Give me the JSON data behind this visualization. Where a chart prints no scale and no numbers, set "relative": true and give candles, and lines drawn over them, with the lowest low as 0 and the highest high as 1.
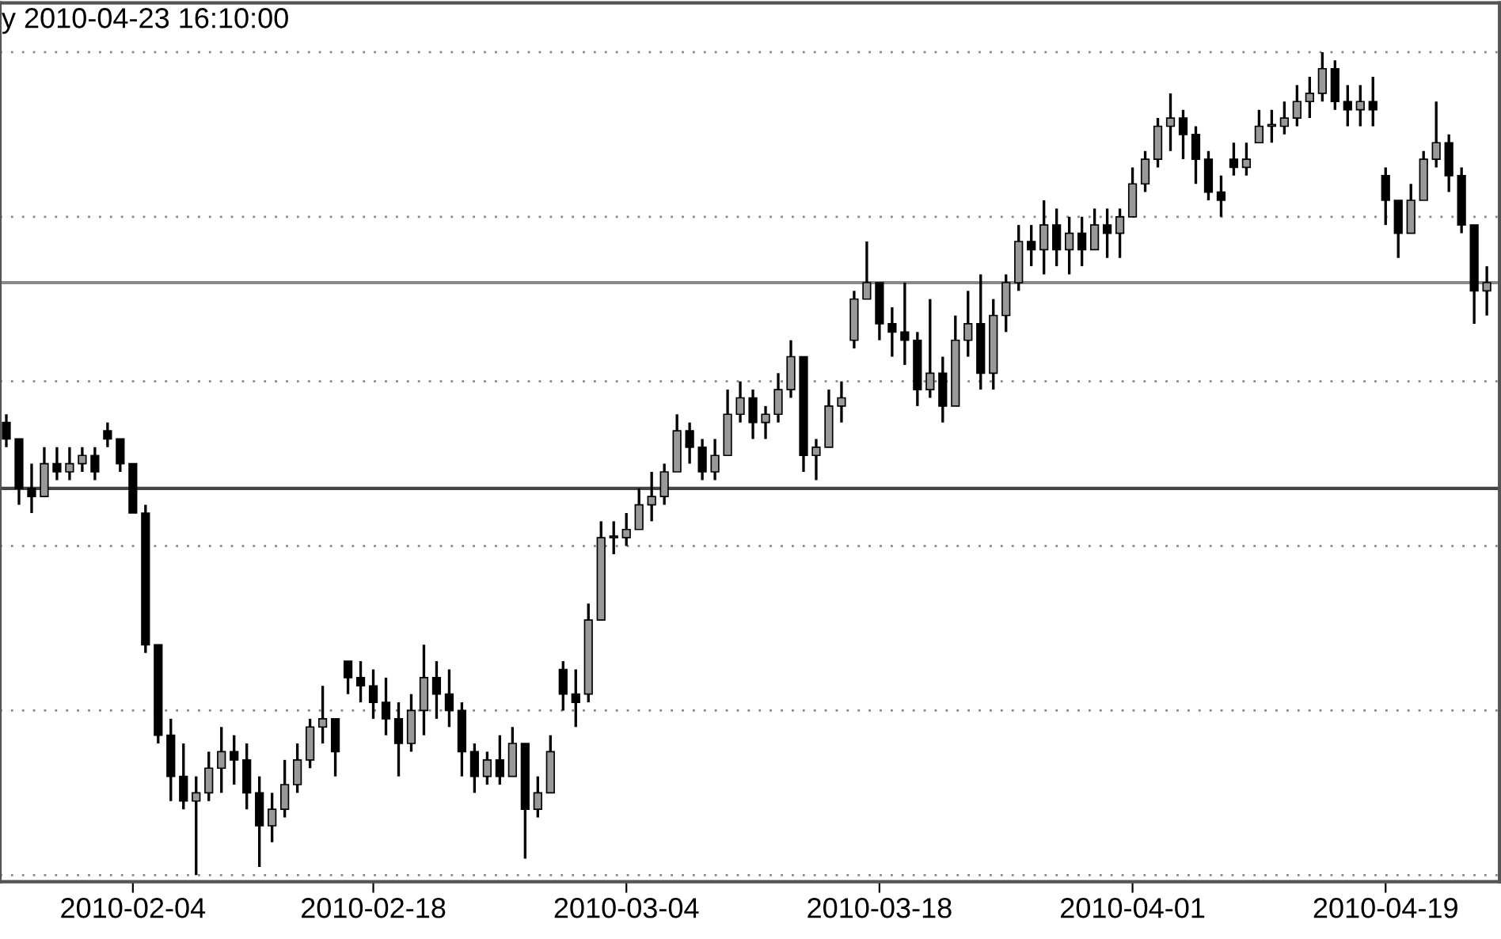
{
  "chart_data": {
    "type": "candlestick",
    "title": "y 2010-04-23 16:10:00",
    "relative": true,
    "grid": "y",
    "legend": false,
    "categories": [
      null,
      null,
      null,
      null,
      null,
      null,
      null,
      null,
      null,
      null,
      "2010-02-04",
      null,
      null,
      null,
      null,
      null,
      null,
      null,
      null,
      null,
      null,
      null,
      null,
      null,
      null,
      null,
      null,
      null,
      null,
      "2010-02-18",
      null,
      null,
      null,
      null,
      null,
      null,
      null,
      null,
      null,
      null,
      null,
      null,
      null,
      null,
      null,
      null,
      null,
      null,
      null,
      "2010-03-04",
      null,
      null,
      null,
      null,
      null,
      null,
      null,
      null,
      null,
      null,
      null,
      null,
      null,
      null,
      null,
      null,
      null,
      null,
      null,
      "2010-03-18",
      null,
      null,
      null,
      null,
      null,
      null,
      null,
      null,
      null,
      null,
      null,
      null,
      null,
      null,
      null,
      null,
      null,
      null,
      null,
      "2010-04-01",
      null,
      null,
      null,
      null,
      null,
      null,
      null,
      null,
      null,
      null,
      null,
      null,
      null,
      null,
      null,
      null,
      null,
      null,
      null,
      "2010-04-19",
      null,
      null,
      null,
      null,
      null,
      null,
      null,
      null
    ],
    "ohlc": [
      [
        0.55,
        0.56,
        0.52,
        0.53
      ],
      [
        0.53,
        0.53,
        0.45,
        0.47
      ],
      [
        0.47,
        0.5,
        0.44,
        0.46
      ],
      [
        0.46,
        0.52,
        0.46,
        0.5
      ],
      [
        0.5,
        0.52,
        0.48,
        0.49
      ],
      [
        0.49,
        0.52,
        0.48,
        0.5
      ],
      [
        0.5,
        0.52,
        0.49,
        0.51
      ],
      [
        0.51,
        0.52,
        0.48,
        0.49
      ],
      [
        0.54,
        0.55,
        0.52,
        0.53
      ],
      [
        0.53,
        0.53,
        0.49,
        0.5
      ],
      [
        0.5,
        0.5,
        0.44,
        0.44
      ],
      [
        0.44,
        0.45,
        0.27,
        0.28
      ],
      [
        0.28,
        0.28,
        0.16,
        0.17
      ],
      [
        0.17,
        0.19,
        0.09,
        0.12
      ],
      [
        0.12,
        0.16,
        0.08,
        0.09
      ],
      [
        0.09,
        0.12,
        0,
        0.1
      ],
      [
        0.1,
        0.15,
        0.09,
        0.13
      ],
      [
        0.13,
        0.18,
        0.1,
        0.15
      ],
      [
        0.15,
        0.17,
        0.11,
        0.14
      ],
      [
        0.14,
        0.16,
        0.08,
        0.1
      ],
      [
        0.1,
        0.12,
        0.01,
        0.06
      ],
      [
        0.06,
        0.1,
        0.04,
        0.08
      ],
      [
        0.08,
        0.14,
        0.07,
        0.11
      ],
      [
        0.11,
        0.16,
        0.1,
        0.14
      ],
      [
        0.14,
        0.19,
        0.13,
        0.18
      ],
      [
        0.18,
        0.23,
        0.16,
        0.19
      ],
      [
        0.19,
        0.19,
        0.12,
        0.15
      ],
      [
        0.26,
        0.26,
        0.22,
        0.24
      ],
      [
        0.24,
        0.26,
        0.21,
        0.23
      ],
      [
        0.23,
        0.25,
        0.19,
        0.21
      ],
      [
        0.21,
        0.24,
        0.17,
        0.19
      ],
      [
        0.19,
        0.21,
        0.12,
        0.16
      ],
      [
        0.16,
        0.22,
        0.15,
        0.2
      ],
      [
        0.2,
        0.28,
        0.17,
        0.24
      ],
      [
        0.24,
        0.26,
        0.19,
        0.22
      ],
      [
        0.22,
        0.25,
        0.18,
        0.2
      ],
      [
        0.2,
        0.21,
        0.12,
        0.15
      ],
      [
        0.15,
        0.16,
        0.1,
        0.12
      ],
      [
        0.12,
        0.15,
        0.11,
        0.14
      ],
      [
        0.14,
        0.17,
        0.11,
        0.12
      ],
      [
        0.12,
        0.18,
        0.12,
        0.16
      ],
      [
        0.16,
        0.16,
        0.02,
        0.08
      ],
      [
        0.08,
        0.12,
        0.07,
        0.1
      ],
      [
        0.1,
        0.17,
        0.1,
        0.15
      ],
      [
        0.25,
        0.26,
        0.2,
        0.22
      ],
      [
        0.22,
        0.25,
        0.18,
        0.21
      ],
      [
        0.22,
        0.33,
        0.21,
        0.31
      ],
      [
        0.31,
        0.43,
        0.31,
        0.41
      ],
      [
        0.41,
        0.43,
        0.39,
        0.41
      ],
      [
        0.41,
        0.44,
        0.4,
        0.42
      ],
      [
        0.42,
        0.47,
        0.42,
        0.45
      ],
      [
        0.45,
        0.49,
        0.43,
        0.46
      ],
      [
        0.46,
        0.5,
        0.45,
        0.49
      ],
      [
        0.49,
        0.56,
        0.49,
        0.54
      ],
      [
        0.54,
        0.55,
        0.5,
        0.52
      ],
      [
        0.52,
        0.53,
        0.48,
        0.49
      ],
      [
        0.49,
        0.53,
        0.48,
        0.51
      ],
      [
        0.51,
        0.59,
        0.51,
        0.56
      ],
      [
        0.56,
        0.6,
        0.55,
        0.58
      ],
      [
        0.58,
        0.59,
        0.53,
        0.55
      ],
      [
        0.55,
        0.57,
        0.53,
        0.56
      ],
      [
        0.56,
        0.61,
        0.55,
        0.59
      ],
      [
        0.59,
        0.65,
        0.58,
        0.63
      ],
      [
        0.63,
        0.63,
        0.49,
        0.51
      ],
      [
        0.51,
        0.53,
        0.48,
        0.52
      ],
      [
        0.52,
        0.59,
        0.52,
        0.57
      ],
      [
        0.57,
        0.6,
        0.55,
        0.58
      ],
      [
        0.65,
        0.71,
        0.64,
        0.7
      ],
      [
        0.7,
        0.77,
        0.7,
        0.72
      ],
      [
        0.72,
        0.72,
        0.65,
        0.67
      ],
      [
        0.67,
        0.69,
        0.63,
        0.66
      ],
      [
        0.66,
        0.72,
        0.62,
        0.65
      ],
      [
        0.65,
        0.66,
        0.57,
        0.59
      ],
      [
        0.59,
        0.7,
        0.58,
        0.61
      ],
      [
        0.61,
        0.63,
        0.55,
        0.57
      ],
      [
        0.57,
        0.68,
        0.57,
        0.65
      ],
      [
        0.65,
        0.71,
        0.63,
        0.67
      ],
      [
        0.67,
        0.73,
        0.59,
        0.61
      ],
      [
        0.61,
        0.7,
        0.59,
        0.68
      ],
      [
        0.68,
        0.73,
        0.66,
        0.72
      ],
      [
        0.72,
        0.79,
        0.71,
        0.77
      ],
      [
        0.77,
        0.79,
        0.74,
        0.76
      ],
      [
        0.76,
        0.82,
        0.73,
        0.79
      ],
      [
        0.79,
        0.81,
        0.74,
        0.76
      ],
      [
        0.76,
        0.8,
        0.73,
        0.78
      ],
      [
        0.78,
        0.8,
        0.74,
        0.76
      ],
      [
        0.76,
        0.81,
        0.76,
        0.79
      ],
      [
        0.79,
        0.81,
        0.75,
        0.78
      ],
      [
        0.78,
        0.81,
        0.75,
        0.8
      ],
      [
        0.8,
        0.86,
        0.8,
        0.84
      ],
      [
        0.84,
        0.88,
        0.83,
        0.87
      ],
      [
        0.87,
        0.92,
        0.86,
        0.91
      ],
      [
        0.91,
        0.95,
        0.88,
        0.92
      ],
      [
        0.92,
        0.93,
        0.87,
        0.9
      ],
      [
        0.9,
        0.91,
        0.84,
        0.87
      ],
      [
        0.87,
        0.88,
        0.82,
        0.83
      ],
      [
        0.83,
        0.85,
        0.8,
        0.82
      ],
      [
        0.87,
        0.89,
        0.85,
        0.86
      ],
      [
        0.86,
        0.89,
        0.85,
        0.87
      ],
      [
        0.89,
        0.93,
        0.89,
        0.91
      ],
      [
        0.91,
        0.93,
        0.89,
        0.91
      ],
      [
        0.91,
        0.94,
        0.9,
        0.92
      ],
      [
        0.92,
        0.96,
        0.91,
        0.94
      ],
      [
        0.94,
        0.97,
        0.92,
        0.95
      ],
      [
        0.95,
        1,
        0.94,
        0.98
      ],
      [
        0.98,
        0.99,
        0.93,
        0.94
      ],
      [
        0.94,
        0.96,
        0.91,
        0.93
      ],
      [
        0.93,
        0.96,
        0.91,
        0.94
      ],
      [
        0.94,
        0.97,
        0.91,
        0.93
      ],
      [
        0.85,
        0.86,
        0.79,
        0.82
      ],
      [
        0.82,
        0.82,
        0.75,
        0.78
      ],
      [
        0.78,
        0.84,
        0.78,
        0.82
      ],
      [
        0.82,
        0.88,
        0.82,
        0.87
      ],
      [
        0.87,
        0.94,
        0.86,
        0.89
      ],
      [
        0.89,
        0.9,
        0.83,
        0.85
      ],
      [
        0.85,
        0.86,
        0.78,
        0.79
      ],
      [
        0.79,
        0.79,
        0.67,
        0.71
      ],
      [
        0.71,
        0.74,
        0.68,
        0.72
      ]
    ],
    "ref_lines": [
      {
        "axis": "y",
        "value": 0.72,
        "color": "#888888"
      },
      {
        "axis": "y",
        "value": 0.47,
        "color": "#444444"
      }
    ]
  }
}
